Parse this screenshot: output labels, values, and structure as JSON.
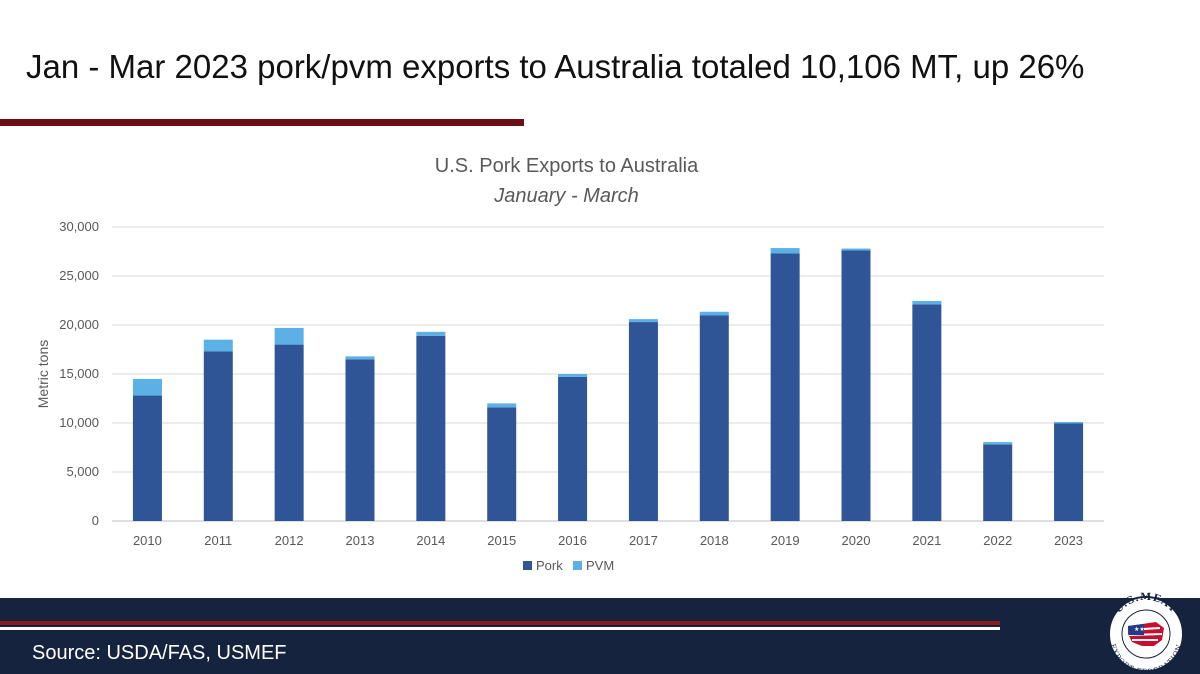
{
  "slide": {
    "title": "Jan - Mar 2023 pork/pvm exports to Australia totaled 10,106 MT, up 26%",
    "source": "Source: USDA/FAS, USMEF",
    "logo_text": "U.S.MEAT EXPORT FEDERATION"
  },
  "colors": {
    "pork": "#2f5597",
    "pvm": "#5bb0e6",
    "title_rule": "#6b0f14",
    "footer": "#16233f",
    "footer_accent": "#8b1b22"
  },
  "chart_data": {
    "type": "bar",
    "stacked": true,
    "title": "U.S. Pork Exports to Australia",
    "subtitle": "January - March",
    "xlabel": "",
    "ylabel": "Metric tons",
    "ylim": [
      0,
      30000
    ],
    "yticks": [
      "0",
      "5,000",
      "10,000",
      "15,000",
      "20,000",
      "25,000",
      "30,000"
    ],
    "grid": true,
    "legend_position": "bottom",
    "categories": [
      "2010",
      "2011",
      "2012",
      "2013",
      "2014",
      "2015",
      "2016",
      "2017",
      "2018",
      "2019",
      "2020",
      "2021",
      "2022",
      "2023"
    ],
    "series": [
      {
        "name": "Pork",
        "color": "#2f5597",
        "values": [
          12800,
          17300,
          18000,
          16500,
          18900,
          11600,
          14700,
          20300,
          21000,
          27300,
          27600,
          22100,
          7800,
          9950
        ]
      },
      {
        "name": "PVM",
        "color": "#5bb0e6",
        "values": [
          1700,
          1200,
          1700,
          300,
          400,
          400,
          300,
          300,
          350,
          550,
          200,
          350,
          250,
          156
        ]
      }
    ]
  }
}
